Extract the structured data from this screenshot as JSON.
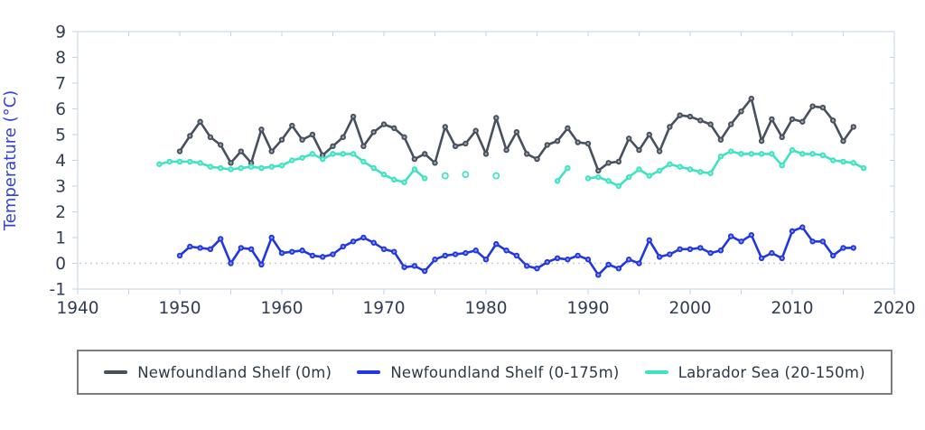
{
  "y_axis": {
    "title": "Temperature (°C)",
    "ticks": [
      9,
      8,
      7,
      6,
      5,
      4,
      3,
      2,
      1,
      0,
      -1
    ],
    "min": -1,
    "max": 9
  },
  "x_axis": {
    "ticks": [
      1940,
      1950,
      1960,
      1970,
      1980,
      1990,
      2000,
      2010,
      2020
    ],
    "minor_step": 5,
    "min": 1940,
    "max": 2020
  },
  "legend": [
    {
      "label": "Newfoundland Shelf (0m)",
      "color": "#47505f"
    },
    {
      "label": "Newfoundland Shelf (0-175m)",
      "color": "#2137e0"
    },
    {
      "label": "Labrador Sea (20-150m)",
      "color": "#3fe2c3"
    }
  ],
  "colors": {
    "dark_series": "#47505f",
    "blue_series": "#2137e0",
    "teal_series": "#3fe2c3",
    "plot_border": "#c7d3e6",
    "tick_label": "#333c55",
    "axis_title": "#3443d6",
    "zero_line": "#c8cdd8",
    "legend_border": "#797d83",
    "legend_text": "#2f3845"
  },
  "chart_data": {
    "type": "line",
    "title": "",
    "xlabel": "",
    "ylabel": "Temperature (°C)",
    "xlim": [
      1940,
      2020
    ],
    "ylim": [
      -1,
      9
    ],
    "grid": false,
    "zero_reference_line": true,
    "legend_position": "bottom",
    "series": [
      {
        "name": "Newfoundland Shelf (0m)",
        "color": "#47505f",
        "marker": "ringed-dot",
        "segments": [
          [
            [
              1950,
              4.35
            ],
            [
              1951,
              4.95
            ],
            [
              1952,
              5.5
            ],
            [
              1953,
              4.9
            ],
            [
              1954,
              4.6
            ],
            [
              1955,
              3.9
            ],
            [
              1956,
              4.35
            ],
            [
              1957,
              3.9
            ],
            [
              1958,
              5.2
            ],
            [
              1959,
              4.35
            ],
            [
              1960,
              4.8
            ],
            [
              1961,
              5.35
            ],
            [
              1962,
              4.8
            ],
            [
              1963,
              5.0
            ],
            [
              1964,
              4.2
            ],
            [
              1965,
              4.55
            ],
            [
              1966,
              4.9
            ],
            [
              1967,
              5.7
            ],
            [
              1968,
              4.55
            ],
            [
              1969,
              5.1
            ],
            [
              1970,
              5.4
            ],
            [
              1971,
              5.25
            ],
            [
              1972,
              4.9
            ],
            [
              1973,
              4.05
            ],
            [
              1974,
              4.25
            ],
            [
              1975,
              3.9
            ],
            [
              1976,
              5.3
            ],
            [
              1977,
              4.55
            ],
            [
              1978,
              4.65
            ],
            [
              1979,
              5.15
            ],
            [
              1980,
              4.25
            ],
            [
              1981,
              5.65
            ],
            [
              1982,
              4.4
            ],
            [
              1983,
              5.1
            ],
            [
              1984,
              4.25
            ],
            [
              1985,
              4.05
            ],
            [
              1986,
              4.6
            ],
            [
              1987,
              4.75
            ],
            [
              1988,
              5.25
            ],
            [
              1989,
              4.7
            ],
            [
              1990,
              4.65
            ],
            [
              1991,
              3.6
            ],
            [
              1992,
              3.9
            ],
            [
              1993,
              3.95
            ],
            [
              1994,
              4.85
            ],
            [
              1995,
              4.4
            ],
            [
              1996,
              5.0
            ],
            [
              1997,
              4.35
            ],
            [
              1998,
              5.3
            ],
            [
              1999,
              5.75
            ],
            [
              2000,
              5.7
            ],
            [
              2001,
              5.55
            ],
            [
              2002,
              5.4
            ],
            [
              2003,
              4.8
            ],
            [
              2004,
              5.4
            ],
            [
              2005,
              5.9
            ],
            [
              2006,
              6.4
            ],
            [
              2007,
              4.75
            ],
            [
              2008,
              5.6
            ],
            [
              2009,
              4.9
            ],
            [
              2010,
              5.6
            ],
            [
              2011,
              5.5
            ],
            [
              2012,
              6.1
            ],
            [
              2013,
              6.05
            ],
            [
              2014,
              5.55
            ],
            [
              2015,
              4.75
            ],
            [
              2016,
              5.3
            ]
          ]
        ],
        "isolated_points": []
      },
      {
        "name": "Newfoundland Shelf (0-175m)",
        "color": "#2137e0",
        "marker": "ringed-dot",
        "segments": [
          [
            [
              1950,
              0.3
            ],
            [
              1951,
              0.65
            ],
            [
              1952,
              0.6
            ],
            [
              1953,
              0.55
            ],
            [
              1954,
              0.95
            ],
            [
              1955,
              0.0
            ],
            [
              1956,
              0.6
            ],
            [
              1957,
              0.55
            ],
            [
              1958,
              -0.05
            ],
            [
              1959,
              1.0
            ],
            [
              1960,
              0.4
            ],
            [
              1961,
              0.45
            ],
            [
              1962,
              0.5
            ],
            [
              1963,
              0.3
            ],
            [
              1964,
              0.25
            ],
            [
              1965,
              0.35
            ],
            [
              1966,
              0.65
            ],
            [
              1967,
              0.85
            ],
            [
              1968,
              1.0
            ],
            [
              1969,
              0.8
            ],
            [
              1970,
              0.55
            ],
            [
              1971,
              0.45
            ],
            [
              1972,
              -0.15
            ],
            [
              1973,
              -0.1
            ],
            [
              1974,
              -0.3
            ],
            [
              1975,
              0.15
            ],
            [
              1976,
              0.3
            ],
            [
              1977,
              0.35
            ],
            [
              1978,
              0.4
            ],
            [
              1979,
              0.5
            ],
            [
              1980,
              0.15
            ],
            [
              1981,
              0.75
            ],
            [
              1982,
              0.5
            ],
            [
              1983,
              0.3
            ],
            [
              1984,
              -0.1
            ],
            [
              1985,
              -0.2
            ],
            [
              1986,
              0.05
            ],
            [
              1987,
              0.2
            ],
            [
              1988,
              0.15
            ],
            [
              1989,
              0.3
            ],
            [
              1990,
              0.15
            ],
            [
              1991,
              -0.45
            ],
            [
              1992,
              -0.05
            ],
            [
              1993,
              -0.2
            ],
            [
              1994,
              0.15
            ],
            [
              1995,
              0.0
            ],
            [
              1996,
              0.9
            ],
            [
              1997,
              0.25
            ],
            [
              1998,
              0.35
            ],
            [
              1999,
              0.55
            ],
            [
              2000,
              0.55
            ],
            [
              2001,
              0.6
            ],
            [
              2002,
              0.4
            ],
            [
              2003,
              0.5
            ],
            [
              2004,
              1.05
            ],
            [
              2005,
              0.85
            ],
            [
              2006,
              1.1
            ],
            [
              2007,
              0.2
            ],
            [
              2008,
              0.4
            ],
            [
              2009,
              0.2
            ],
            [
              2010,
              1.25
            ],
            [
              2011,
              1.4
            ],
            [
              2012,
              0.85
            ],
            [
              2013,
              0.85
            ],
            [
              2014,
              0.3
            ],
            [
              2015,
              0.6
            ],
            [
              2016,
              0.6
            ]
          ]
        ],
        "isolated_points": []
      },
      {
        "name": "Labrador Sea (20-150m)",
        "color": "#3fe2c3",
        "marker": "ringed-dot",
        "segments": [
          [
            [
              1948,
              3.85
            ],
            [
              1949,
              3.95
            ],
            [
              1950,
              3.95
            ],
            [
              1951,
              3.95
            ],
            [
              1952,
              3.9
            ],
            [
              1953,
              3.75
            ],
            [
              1954,
              3.7
            ],
            [
              1955,
              3.65
            ],
            [
              1956,
              3.7
            ],
            [
              1957,
              3.75
            ],
            [
              1958,
              3.7
            ],
            [
              1959,
              3.75
            ],
            [
              1960,
              3.8
            ],
            [
              1961,
              4.0
            ],
            [
              1962,
              4.1
            ],
            [
              1963,
              4.25
            ],
            [
              1964,
              4.05
            ],
            [
              1965,
              4.25
            ],
            [
              1966,
              4.25
            ],
            [
              1967,
              4.25
            ],
            [
              1968,
              3.95
            ],
            [
              1969,
              3.7
            ],
            [
              1970,
              3.45
            ],
            [
              1971,
              3.25
            ],
            [
              1972,
              3.15
            ],
            [
              1973,
              3.65
            ],
            [
              1974,
              3.3
            ]
          ],
          [
            [
              1987,
              3.2
            ],
            [
              1988,
              3.7
            ]
          ],
          [
            [
              1990,
              3.3
            ],
            [
              1991,
              3.35
            ],
            [
              1992,
              3.2
            ],
            [
              1993,
              3.0
            ],
            [
              1994,
              3.35
            ],
            [
              1995,
              3.65
            ],
            [
              1996,
              3.4
            ],
            [
              1997,
              3.6
            ],
            [
              1998,
              3.85
            ],
            [
              1999,
              3.75
            ],
            [
              2000,
              3.65
            ],
            [
              2001,
              3.55
            ],
            [
              2002,
              3.5
            ],
            [
              2003,
              4.15
            ],
            [
              2004,
              4.35
            ],
            [
              2005,
              4.25
            ],
            [
              2006,
              4.25
            ],
            [
              2007,
              4.25
            ],
            [
              2008,
              4.25
            ],
            [
              2009,
              3.8
            ],
            [
              2010,
              4.4
            ],
            [
              2011,
              4.25
            ],
            [
              2012,
              4.25
            ],
            [
              2013,
              4.2
            ],
            [
              2014,
              4.0
            ],
            [
              2015,
              3.95
            ],
            [
              2016,
              3.9
            ],
            [
              2017,
              3.7
            ]
          ]
        ],
        "isolated_points": [
          [
            1976,
            3.4
          ],
          [
            1978,
            3.45
          ],
          [
            1981,
            3.4
          ]
        ]
      }
    ]
  }
}
